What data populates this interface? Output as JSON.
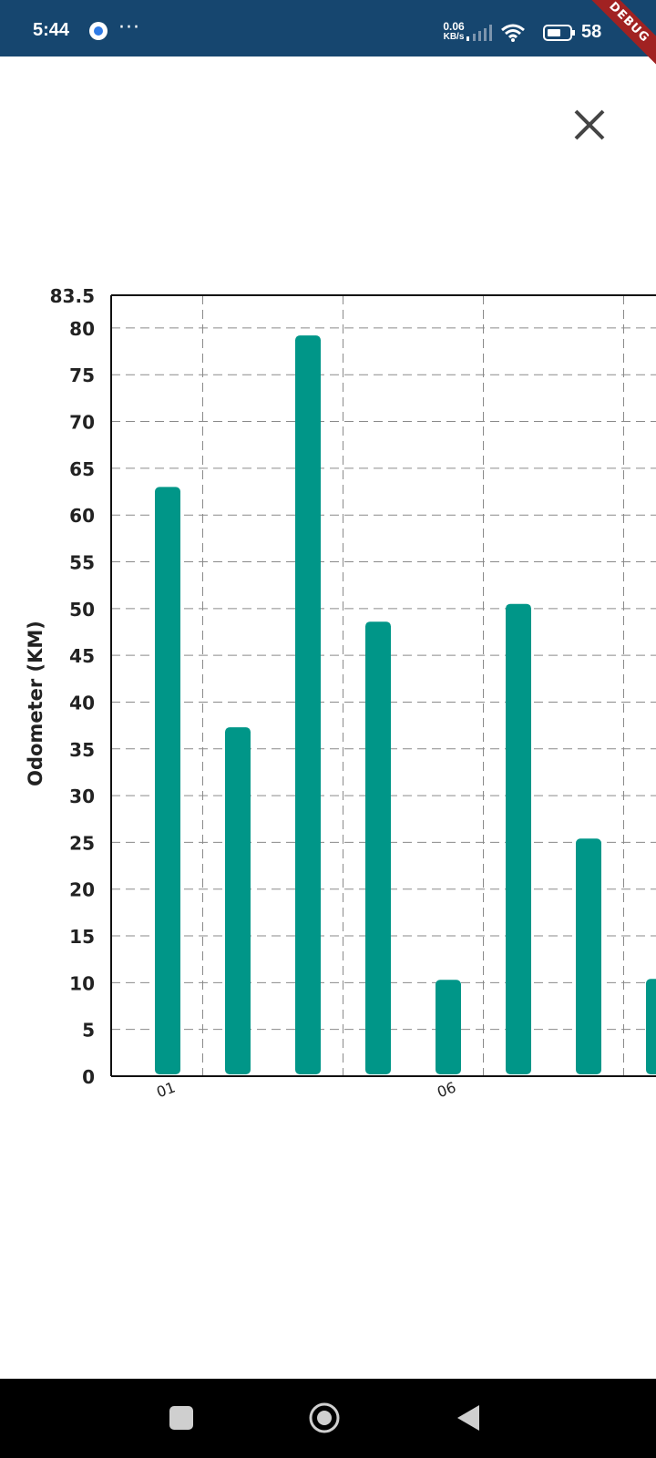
{
  "status_bar": {
    "time": "5:44",
    "dots": "···",
    "net_speed_value": "0.06",
    "net_speed_unit": "KB/s",
    "battery": "58",
    "app_icon": "messenger-icon",
    "bg_color": "#16466f"
  },
  "debug_banner": "DEBUG",
  "close_icon": "close-icon",
  "chart_data": {
    "type": "bar",
    "ylabel": "Odometer (KM)",
    "ylim": [
      0,
      83.5
    ],
    "y_ticks": [
      "0",
      "5",
      "10",
      "15",
      "20",
      "25",
      "30",
      "35",
      "40",
      "45",
      "50",
      "55",
      "60",
      "65",
      "70",
      "75",
      "80",
      "83.5"
    ],
    "x_tick_labels": [
      {
        "slot": 0,
        "label": "01"
      },
      {
        "slot": 4,
        "label": "06"
      }
    ],
    "values": [
      63,
      37.3,
      79.2,
      48.6,
      10.3,
      50.5,
      25.4,
      10.4
    ],
    "bar_color": "#009688",
    "grid": true
  },
  "nav_bar": {
    "recents_icon": "recents-icon",
    "home_icon": "home-icon",
    "back_icon": "back-icon"
  }
}
